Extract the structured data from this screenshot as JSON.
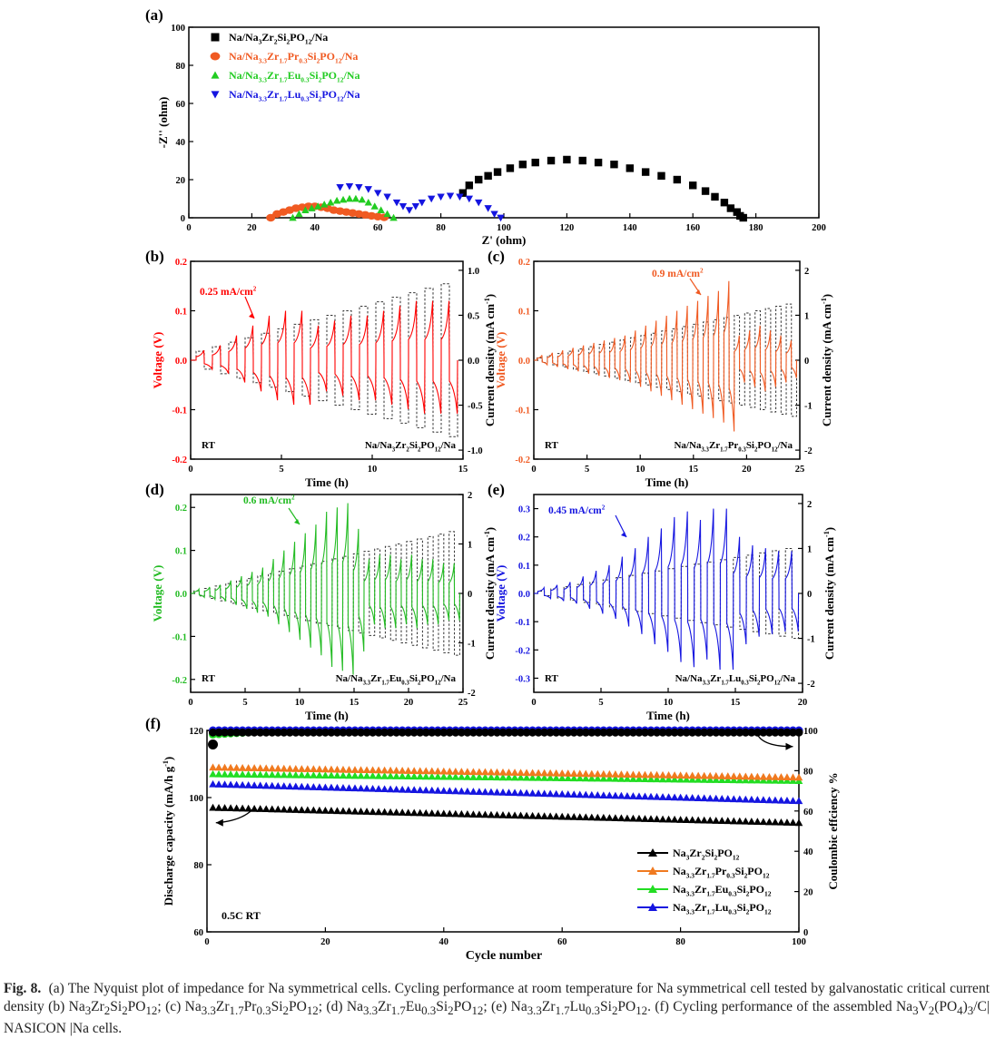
{
  "figure_label": "Fig. 8.",
  "caption_html": "(a) The Nyquist plot of impedance for Na symmetrical cells. Cycling performance at room temperature for Na symmetrical cell tested by galvanostatic critical current density (b) Na<sub>3</sub>Zr<sub>2</sub>Si<sub>2</sub>PO<sub>12</sub>; (c) Na<sub>3.3</sub>Zr<sub>1.7</sub>Pr<sub>0.3</sub>Si<sub>2</sub>PO<sub>12</sub>; (d) Na<sub>3.3</sub>Zr<sub>1.7</sub>Eu<sub>0.3</sub>Si<sub>2</sub>PO<sub>12</sub>; (e) Na<sub>3.3</sub>Zr<sub>1.7</sub>Lu<sub>0.3</sub>Si<sub>2</sub>PO<sub>12</sub>. (f) Cycling performance of the assembled Na<sub>3</sub>V<sub>2</sub>(PO<sub>4</sub>)<sub>3</sub>/C| NASICON |Na cells.",
  "chart_data": [
    {
      "panel": "(a)",
      "type": "scatter",
      "xlabel": "Z' (ohm)",
      "ylabel": "-Z'' (ohm)",
      "xlim": [
        0,
        200
      ],
      "ylim": [
        0,
        100
      ],
      "xticks": [
        0,
        20,
        40,
        60,
        80,
        100,
        120,
        140,
        160,
        180,
        200
      ],
      "yticks": [
        0,
        20,
        40,
        60,
        80,
        100
      ],
      "legend_position": "top-left",
      "series": [
        {
          "name": "Na/Na<sub>3</sub>Zr<sub>2</sub>Si<sub>2</sub>PO<sub>12</sub>/Na",
          "marker": "square",
          "color": "#000000",
          "x": [
            87,
            89,
            92,
            95,
            98,
            102,
            106,
            110,
            115,
            120,
            125,
            130,
            135,
            140,
            145,
            150,
            155,
            160,
            164,
            167,
            170,
            172,
            174,
            175,
            176
          ],
          "y": [
            13,
            17,
            20,
            22,
            24,
            26,
            28,
            29,
            30,
            30.5,
            30,
            29,
            28,
            26,
            24,
            22,
            20,
            17,
            14,
            11,
            8,
            5,
            3,
            1,
            0
          ]
        },
        {
          "name": "Na/Na<sub>3.3</sub>Zr<sub>1.7</sub>Pr<sub>0.3</sub>Si<sub>2</sub>PO<sub>12</sub>/Na",
          "marker": "circle",
          "color": "#f05a22",
          "x": [
            26,
            28,
            30,
            32,
            34,
            36,
            38,
            40,
            42,
            44,
            46,
            48,
            50,
            52,
            54,
            56,
            58,
            60,
            62
          ],
          "y": [
            0,
            2,
            3,
            4,
            5,
            5.5,
            6,
            6,
            5.5,
            5,
            4,
            3.5,
            3,
            2.5,
            2,
            1.5,
            1,
            0.6,
            0.2
          ]
        },
        {
          "name": "Na/Na<sub>3.3</sub>Zr<sub>1.7</sub>Eu<sub>0.3</sub>Si<sub>2</sub>PO<sub>12</sub>/Na",
          "marker": "triangle-up",
          "color": "#22cc22",
          "x": [
            33,
            35,
            37,
            39,
            41,
            43,
            45,
            47,
            49,
            51,
            53,
            55,
            57,
            59,
            61,
            63,
            65
          ],
          "y": [
            0,
            2,
            4,
            5,
            6,
            7,
            8,
            9,
            9.5,
            10,
            10,
            9.5,
            8,
            6,
            4,
            2,
            0
          ]
        },
        {
          "name": "Na/Na<sub>3.3</sub>Zr<sub>1.7</sub>Lu<sub>0.3</sub>Si<sub>2</sub>PO<sub>12</sub>/Na",
          "marker": "triangle-down",
          "color": "#1515e0",
          "x": [
            48,
            51,
            54,
            57,
            60,
            63,
            66,
            68,
            70,
            72,
            74,
            77,
            80,
            83,
            86,
            89,
            92,
            95,
            97,
            99
          ],
          "y": [
            16,
            16.5,
            16,
            15,
            13,
            11,
            8,
            6,
            4,
            6,
            8,
            10,
            11,
            11.5,
            11,
            10,
            8,
            5,
            2,
            0
          ]
        }
      ]
    },
    {
      "panel": "(b)",
      "type": "line",
      "xlabel": "Time (h)",
      "ylabel": "Voltage (V)",
      "y2label": "Current density (mA cm<sup>-1</sup>)",
      "xlim": [
        0,
        15
      ],
      "ylim": [
        -0.2,
        0.2
      ],
      "y2lim": [
        -1.1,
        1.1
      ],
      "xticks": [
        0,
        5,
        10,
        15
      ],
      "yticks": [
        -0.2,
        -0.1,
        0.0,
        0.1,
        0.2
      ],
      "y2ticks": [
        -1.0,
        -0.5,
        0.0,
        0.5,
        1.0
      ],
      "annotation": "0.25 mA/cm<sup>2</sup>",
      "corner_label": "RT",
      "cell_label": "Na/Na<sub>3</sub>Zr<sub>2</sub>Si<sub>2</sub>PO<sub>12</sub>/Na",
      "voltage_color": "#ff0000",
      "voltage_peaks": [
        0.02,
        0.03,
        0.05,
        0.07,
        0.09,
        0.1,
        0.1,
        0.07,
        0.08,
        0.09,
        0.09,
        0.1,
        0.11,
        0.12,
        0.12,
        0.12
      ],
      "current_peaks": [
        0.1,
        0.15,
        0.2,
        0.25,
        0.3,
        0.35,
        0.4,
        0.45,
        0.5,
        0.55,
        0.6,
        0.65,
        0.7,
        0.75,
        0.8,
        0.85
      ]
    },
    {
      "panel": "(c)",
      "type": "line",
      "xlabel": "Time (h)",
      "ylabel": "Voltage (V)",
      "y2label": "Current density (mA cm<sup>-1</sup>)",
      "xlim": [
        0,
        25
      ],
      "ylim": [
        -0.2,
        0.2
      ],
      "y2lim": [
        -2.2,
        2.2
      ],
      "xticks": [
        0,
        5,
        10,
        15,
        20,
        25
      ],
      "yticks": [
        -0.2,
        -0.1,
        0.0,
        0.1,
        0.2
      ],
      "y2ticks": [
        -2,
        -1,
        0,
        1,
        2
      ],
      "annotation": "0.9 mA/cm<sup>2</sup>",
      "corner_label": "RT",
      "cell_label": "Na/Na<sub>3.3</sub>Zr<sub>1.7</sub>Pr<sub>0.3</sub>Si<sub>2</sub>PO<sub>12</sub>/Na",
      "voltage_color": "#f05a22",
      "voltage_peaks": [
        0.01,
        0.015,
        0.02,
        0.025,
        0.03,
        0.035,
        0.04,
        0.045,
        0.05,
        0.06,
        0.07,
        0.08,
        0.09,
        0.1,
        0.11,
        0.12,
        0.13,
        0.14,
        0.16,
        0.05,
        0.06,
        0.07,
        0.06,
        0.05,
        0.04
      ],
      "current_peaks": [
        0.05,
        0.1,
        0.15,
        0.2,
        0.25,
        0.3,
        0.35,
        0.4,
        0.45,
        0.5,
        0.55,
        0.6,
        0.65,
        0.7,
        0.75,
        0.8,
        0.85,
        0.9,
        0.95,
        1.0,
        1.05,
        1.1,
        1.15,
        1.2,
        1.25
      ]
    },
    {
      "panel": "(d)",
      "type": "line",
      "xlabel": "Time (h)",
      "ylabel": "Voltage (V)",
      "y2label": "Current density (mA cm<sup>-1</sup>)",
      "xlim": [
        0,
        25
      ],
      "ylim": [
        -0.23,
        0.23
      ],
      "y2lim": [
        -2,
        2
      ],
      "xticks": [
        0,
        5,
        10,
        15,
        20,
        25
      ],
      "yticks": [
        -0.2,
        -0.1,
        0.0,
        0.1,
        0.2
      ],
      "y2ticks": [
        -2,
        -1,
        0,
        1,
        2
      ],
      "annotation": "0.6 mA/cm<sup>2</sup>",
      "corner_label": "RT",
      "cell_label": "Na/Na<sub>3.3</sub>Zr<sub>1.7</sub>Eu<sub>0.3</sub>Si<sub>2</sub>PO<sub>12</sub>/Na",
      "voltage_color": "#22bb22",
      "voltage_peaks": [
        0.01,
        0.015,
        0.02,
        0.03,
        0.04,
        0.05,
        0.06,
        0.08,
        0.1,
        0.12,
        0.14,
        0.16,
        0.19,
        0.2,
        0.21,
        0.15,
        0.08,
        0.09,
        0.09,
        0.08,
        0.09,
        0.08,
        0.08,
        0.07,
        0.07
      ],
      "current_peaks": [
        0.05,
        0.1,
        0.15,
        0.2,
        0.25,
        0.3,
        0.35,
        0.4,
        0.45,
        0.5,
        0.55,
        0.6,
        0.65,
        0.7,
        0.75,
        0.8,
        0.85,
        0.9,
        0.95,
        1.0,
        1.05,
        1.1,
        1.15,
        1.2,
        1.25
      ]
    },
    {
      "panel": "(e)",
      "type": "line",
      "xlabel": "Time (h)",
      "ylabel": "Voltage (V)",
      "y2label": "Current density (mA cm<sup>-1</sup>)",
      "xlim": [
        0,
        20
      ],
      "ylim": [
        -0.35,
        0.35
      ],
      "y2lim": [
        -2.2,
        2.2
      ],
      "xticks": [
        0,
        5,
        10,
        15,
        20
      ],
      "yticks": [
        -0.3,
        -0.2,
        -0.1,
        0.0,
        0.1,
        0.2,
        0.3
      ],
      "y2ticks": [
        -2,
        -1,
        0,
        1,
        2
      ],
      "annotation": "0.45 mA/cm<sup>2</sup>",
      "corner_label": "RT",
      "cell_label": "Na/Na<sub>3.3</sub>Zr<sub>1.7</sub>Lu<sub>0.3</sub>Si<sub>2</sub>PO<sub>12</sub>/Na",
      "voltage_color": "#1515e0",
      "voltage_peaks": [
        0.02,
        0.03,
        0.04,
        0.06,
        0.08,
        0.1,
        0.13,
        0.16,
        0.2,
        0.23,
        0.27,
        0.29,
        0.26,
        0.3,
        0.3,
        0.2,
        0.17,
        0.16,
        0.15,
        0.15
      ],
      "current_peaks": [
        0.05,
        0.1,
        0.15,
        0.2,
        0.25,
        0.3,
        0.35,
        0.4,
        0.45,
        0.5,
        0.55,
        0.6,
        0.65,
        0.7,
        0.75,
        0.8,
        0.85,
        0.9,
        0.95,
        1.0
      ]
    },
    {
      "panel": "(f)",
      "type": "scatter",
      "xlabel": "Cycle number",
      "ylabel": "Discharge capacity (mA/h g<sup>-1</sup>)",
      "y2label": "Coulombic effciency %",
      "xlim": [
        0,
        100
      ],
      "ylim": [
        60,
        120
      ],
      "y2lim": [
        0,
        100
      ],
      "xticks": [
        0,
        20,
        40,
        60,
        80,
        100
      ],
      "yticks": [
        60,
        80,
        100,
        120
      ],
      "y2ticks": [
        0,
        20,
        40,
        60,
        80,
        100
      ],
      "corner_label": "0.5C  RT",
      "legend_position": "bottom-right",
      "series": [
        {
          "name": "Na<sub>3</sub>Zr<sub>2</sub>Si<sub>2</sub>PO<sub>12</sub>",
          "color": "#000000",
          "capacity_start": 97,
          "capacity_end": 92.5,
          "efficiency_start": 99,
          "efficiency_end": 99
        },
        {
          "name": "Na<sub>3.3</sub>Zr<sub>1.7</sub>Pr<sub>0.3</sub>Si<sub>2</sub>PO<sub>12</sub>",
          "color": "#f07a20",
          "capacity_start": 109,
          "capacity_end": 106,
          "efficiency_start": 99.5,
          "efficiency_end": 99.5
        },
        {
          "name": "Na<sub>3.3</sub>Zr<sub>1.7</sub>Eu<sub>0.3</sub>Si<sub>2</sub>PO<sub>12</sub>",
          "color": "#22dd22",
          "capacity_start": 107,
          "capacity_end": 105,
          "efficiency_start": 98,
          "efficiency_end": 99.8
        },
        {
          "name": "Na<sub>3.3</sub>Zr<sub>1.7</sub>Lu<sub>0.3</sub>Si<sub>2</sub>PO<sub>12</sub>",
          "color": "#1515e0",
          "capacity_start": 104,
          "capacity_end": 99,
          "efficiency_start": 100,
          "efficiency_end": 100
        }
      ]
    }
  ]
}
